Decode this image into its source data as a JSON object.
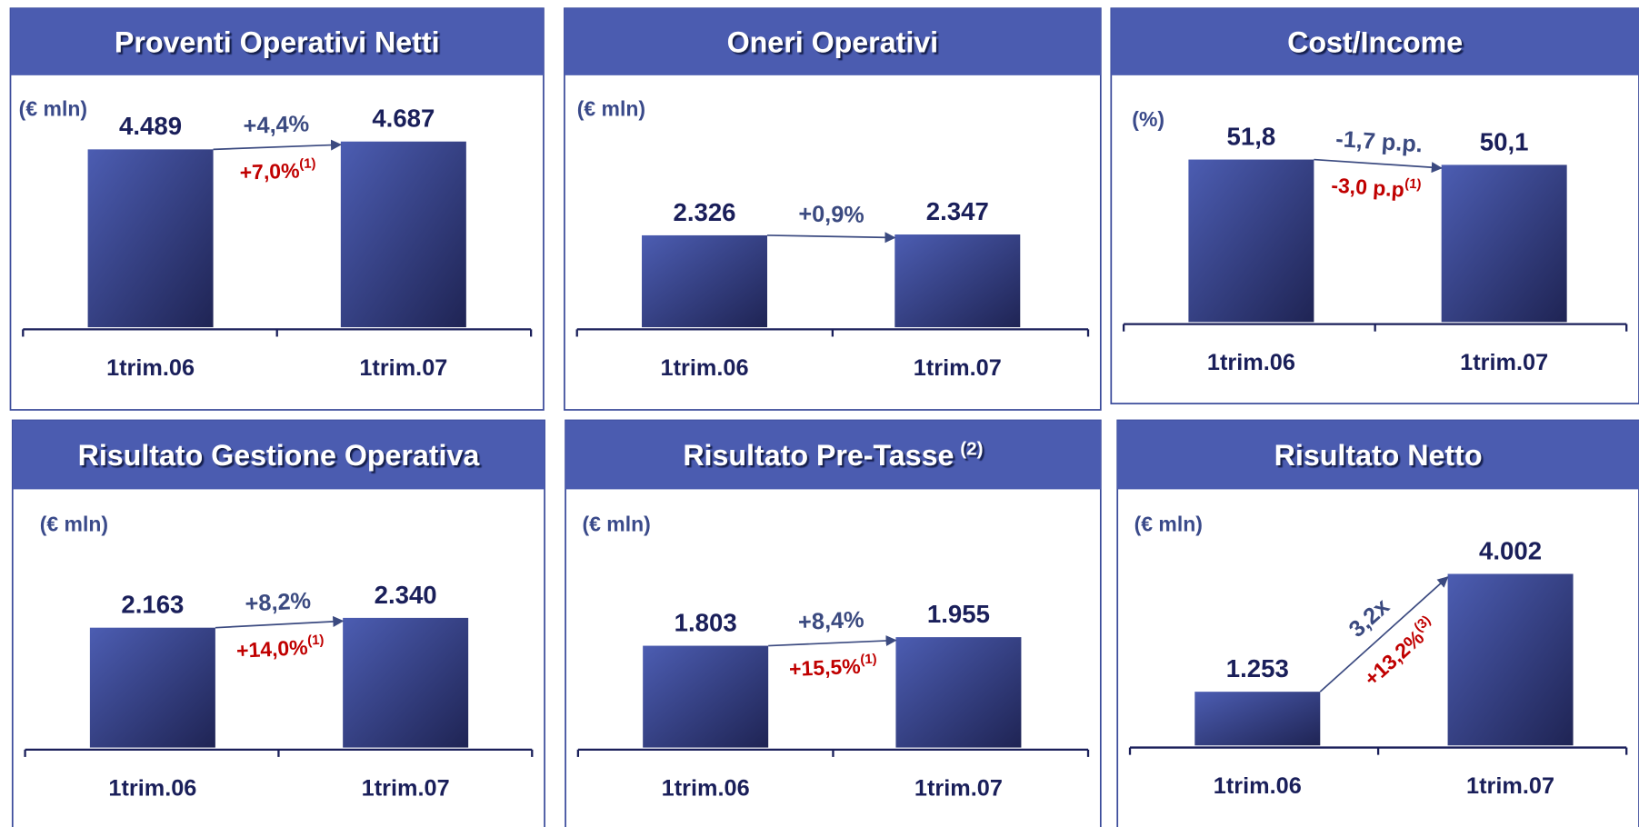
{
  "chart_data": [
    {
      "type": "bar",
      "title": "Proventi Operativi Netti",
      "subtitle": "(€ mln)",
      "categories": [
        "1trim.06",
        "1trim.07"
      ],
      "values": [
        4489,
        4687
      ],
      "value_labels": [
        "4.489",
        "4.687"
      ],
      "color": "#4152a6",
      "annotations": [
        {
          "text": "+4,4%",
          "color": "#3b4a80"
        },
        {
          "text": "+7,0%",
          "sup": "(1)",
          "color": "#c00000"
        }
      ]
    },
    {
      "type": "bar",
      "title": "Oneri Operativi",
      "subtitle": "(€ mln)",
      "categories": [
        "1trim.06",
        "1trim.07"
      ],
      "values": [
        2326,
        2347
      ],
      "value_labels": [
        "2.326",
        "2.347"
      ],
      "color": "#4152a6",
      "annotations": [
        {
          "text": "+0,9%",
          "color": "#3b4a80"
        }
      ]
    },
    {
      "type": "bar",
      "title": "Cost/Income",
      "subtitle": "(%)",
      "categories": [
        "1trim.06",
        "1trim.07"
      ],
      "values": [
        51.8,
        50.1
      ],
      "value_labels": [
        "51,8",
        "50,1"
      ],
      "color": "#4152a6",
      "annotations": [
        {
          "text": "-1,7 p.p.",
          "color": "#3b4a80"
        },
        {
          "text": "-3,0 p.p",
          "sup": "(1)",
          "color": "#c00000"
        }
      ]
    },
    {
      "type": "bar",
      "title": "Risultato Gestione Operativa",
      "subtitle": "(€ mln)",
      "categories": [
        "1trim.06",
        "1trim.07"
      ],
      "values": [
        2163,
        2340
      ],
      "value_labels": [
        "2.163",
        "2.340"
      ],
      "color": "#4152a6",
      "annotations": [
        {
          "text": "+8,2%",
          "color": "#3b4a80"
        },
        {
          "text": "+14,0%",
          "sup": "(1)",
          "color": "#c00000"
        }
      ]
    },
    {
      "type": "bar",
      "title": "Risultato Pre-Tasse",
      "title_sup": "(2)",
      "subtitle": "(€ mln)",
      "categories": [
        "1trim.06",
        "1trim.07"
      ],
      "values": [
        1803,
        1955
      ],
      "value_labels": [
        "1.803",
        "1.955"
      ],
      "color": "#4152a6",
      "annotations": [
        {
          "text": "+8,4%",
          "color": "#3b4a80"
        },
        {
          "text": "+15,5%",
          "sup": "(1)",
          "color": "#c00000"
        }
      ]
    },
    {
      "type": "bar",
      "title": "Risultato Netto",
      "subtitle": "(€ mln)",
      "categories": [
        "1trim.06",
        "1trim.07"
      ],
      "values": [
        1253,
        4002
      ],
      "value_labels": [
        "1.253",
        "4.002"
      ],
      "color": "#4152a6",
      "annotations": [
        {
          "text": "3,2x",
          "color": "#3b4a80"
        },
        {
          "text": "+13,2%",
          "sup": "(3)",
          "color": "#c00000"
        }
      ]
    }
  ]
}
